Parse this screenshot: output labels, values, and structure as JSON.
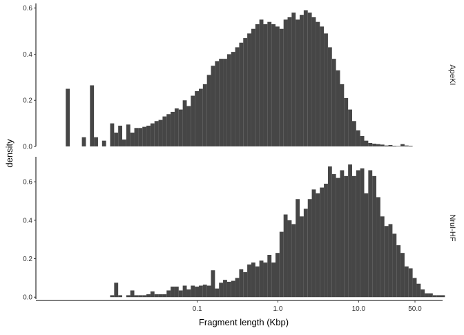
{
  "chart_data": {
    "type": "bar",
    "xlabel": "Fragment length (Kbp)",
    "ylabel": "density",
    "x_scale": "log10",
    "xlim": [
      0.001,
      110
    ],
    "x_ticks": [
      {
        "value": 0.1,
        "label": "0.1"
      },
      {
        "value": 1.0,
        "label": "1.0"
      },
      {
        "value": 10.0,
        "label": "10.0"
      },
      {
        "value": 50.0,
        "label": "50.0"
      }
    ],
    "grid": false,
    "legend": "none",
    "bar_color": "#464646",
    "bins_per_decade": 20,
    "panels": [
      {
        "name": "ApeKI",
        "ylim": [
          0,
          0.62
        ],
        "y_ticks": [
          {
            "value": 0.0,
            "label": "0.0"
          },
          {
            "value": 0.2,
            "label": "0.2"
          },
          {
            "value": 0.4,
            "label": "0.4"
          },
          {
            "value": 0.6,
            "label": "0.6"
          }
        ],
        "first_bin_log10": -2.63,
        "values": [
          0.25,
          0,
          0,
          0,
          0.04,
          0,
          0.265,
          0.04,
          0,
          0.025,
          0,
          0.1,
          0.06,
          0.09,
          0.03,
          0.095,
          0.06,
          0.08,
          0.08,
          0.085,
          0.09,
          0.1,
          0.11,
          0.115,
          0.13,
          0.14,
          0.15,
          0.165,
          0.16,
          0.2,
          0.175,
          0.22,
          0.24,
          0.25,
          0.27,
          0.31,
          0.35,
          0.37,
          0.38,
          0.38,
          0.4,
          0.41,
          0.43,
          0.45,
          0.47,
          0.49,
          0.51,
          0.53,
          0.55,
          0.53,
          0.54,
          0.53,
          0.52,
          0.51,
          0.55,
          0.56,
          0.58,
          0.55,
          0.57,
          0.59,
          0.58,
          0.56,
          0.54,
          0.52,
          0.49,
          0.43,
          0.38,
          0.33,
          0.27,
          0.21,
          0.16,
          0.11,
          0.07,
          0.045,
          0.025,
          0.015,
          0.012,
          0.01,
          0.008,
          0.004,
          0.006,
          0.003,
          0.002,
          0.01,
          0.004,
          0.003
        ]
      },
      {
        "name": "NruI-HF",
        "ylim": [
          -0.01,
          0.73
        ],
        "y_ticks": [
          {
            "value": 0.0,
            "label": "0.0"
          },
          {
            "value": 0.2,
            "label": "0.2"
          },
          {
            "value": 0.4,
            "label": "0.4"
          },
          {
            "value": 0.6,
            "label": "0.6"
          }
        ],
        "first_bin_log10": -2.08,
        "values": [
          0.01,
          0.075,
          0.01,
          0,
          0.01,
          0.035,
          0.01,
          0.01,
          0.01,
          0.015,
          0.03,
          0.015,
          0.015,
          0.015,
          0.035,
          0.055,
          0.055,
          0.035,
          0.06,
          0.04,
          0.06,
          0.055,
          0.06,
          0.065,
          0.06,
          0.14,
          0.045,
          0.075,
          0.09,
          0.08,
          0.085,
          0.1,
          0.145,
          0.13,
          0.17,
          0.18,
          0.16,
          0.19,
          0.18,
          0.22,
          0.18,
          0.23,
          0.34,
          0.43,
          0.4,
          0.38,
          0.51,
          0.42,
          0.46,
          0.51,
          0.56,
          0.54,
          0.57,
          0.59,
          0.68,
          0.64,
          0.62,
          0.66,
          0.63,
          0.69,
          0.63,
          0.66,
          0.67,
          0.54,
          0.66,
          0.63,
          0.52,
          0.42,
          0.37,
          0.38,
          0.33,
          0.27,
          0.23,
          0.16,
          0.15,
          0.1,
          0.07,
          0.04,
          0.02,
          0.02,
          0.01,
          0.01,
          0.01
        ]
      }
    ]
  }
}
